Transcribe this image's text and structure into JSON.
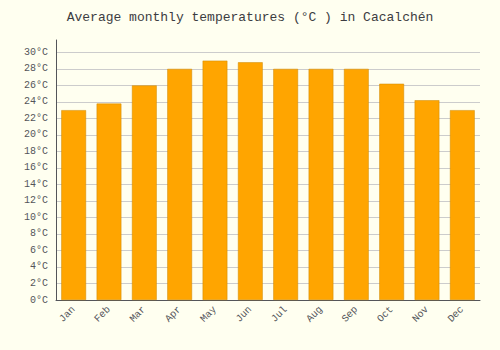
{
  "chart_data": {
    "type": "bar",
    "title": "Average monthly temperatures (°C ) in Cacalchén",
    "categories": [
      "Jan",
      "Feb",
      "Mar",
      "Apr",
      "May",
      "Jun",
      "Jul",
      "Aug",
      "Sep",
      "Oct",
      "Nov",
      "Dec"
    ],
    "values": [
      23.0,
      23.8,
      26.0,
      28.0,
      29.0,
      28.8,
      28.0,
      28.0,
      28.0,
      26.2,
      24.2,
      23.0
    ],
    "color": "#FFA500",
    "ylim": [
      0,
      31.5
    ],
    "yticks": [
      {
        "value": 0,
        "label": "0°C"
      },
      {
        "value": 2,
        "label": "2°C"
      },
      {
        "value": 4,
        "label": "4°C"
      },
      {
        "value": 6,
        "label": "6°C"
      },
      {
        "value": 8,
        "label": "8°C"
      },
      {
        "value": 10,
        "label": "10°C"
      },
      {
        "value": 12,
        "label": "12°C"
      },
      {
        "value": 14,
        "label": "14°C"
      },
      {
        "value": 16,
        "label": "16°C"
      },
      {
        "value": 18,
        "label": "18°C"
      },
      {
        "value": 20,
        "label": "20°C"
      },
      {
        "value": 22,
        "label": "22°C"
      },
      {
        "value": 24,
        "label": "24°C"
      },
      {
        "value": 26,
        "label": "26°C"
      },
      {
        "value": 28,
        "label": "28°C"
      },
      {
        "value": 30,
        "label": "30°C"
      }
    ],
    "grid": true
  }
}
